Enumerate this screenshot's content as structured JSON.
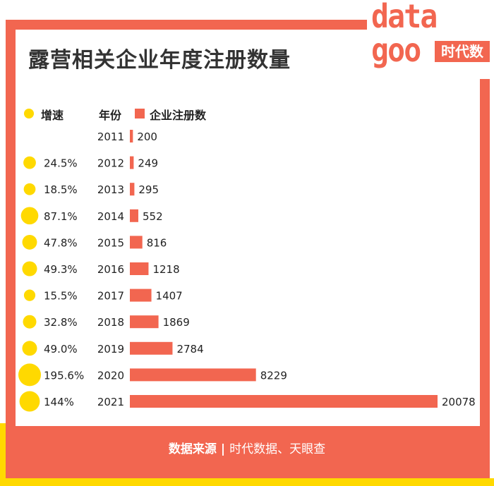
{
  "title": "露营相关企业年度注册数量",
  "logo": {
    "word_top": "data",
    "word_bottom": "goo",
    "tag": "时代数据"
  },
  "legend": {
    "growth": "增速",
    "year": "年份",
    "count": "企业注册数"
  },
  "footer": {
    "label": "数据来源",
    "separator": "|",
    "sources": "时代数据、天眼查"
  },
  "colors": {
    "bar": "#f26650",
    "dot": "#ffd900",
    "frame": "#f26650",
    "strip": "#ffd900"
  },
  "chart_data": {
    "type": "bar",
    "orientation": "horizontal",
    "categories": [
      "2011",
      "2012",
      "2013",
      "2014",
      "2015",
      "2016",
      "2017",
      "2018",
      "2019",
      "2020",
      "2021"
    ],
    "series": [
      {
        "name": "企业注册数",
        "values": [
          200,
          249,
          295,
          552,
          816,
          1218,
          1407,
          1869,
          2784,
          8229,
          20078
        ]
      }
    ],
    "growth_labels": [
      "",
      "24.5%",
      "18.5%",
      "87.1%",
      "47.8%",
      "49.3%",
      "15.5%",
      "32.8%",
      "49.0%",
      "195.6%",
      "144%"
    ],
    "growth_values": [
      null,
      24.5,
      18.5,
      87.1,
      47.8,
      49.3,
      15.5,
      32.8,
      49.0,
      195.6,
      144
    ],
    "title": "露营相关企业年度注册数量",
    "xlabel": "",
    "ylabel": "",
    "legend": [
      "增速",
      "年份",
      "企业注册数"
    ]
  }
}
